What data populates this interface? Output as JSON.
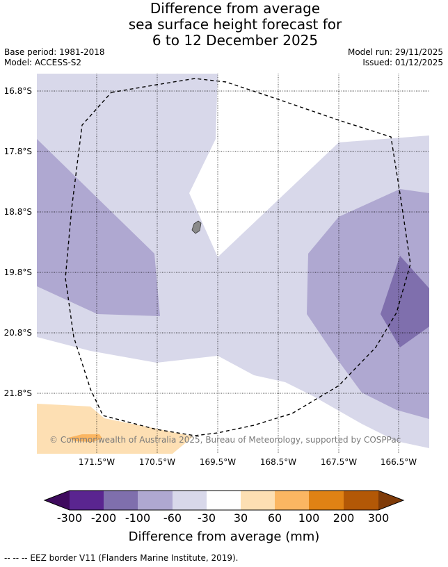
{
  "title": {
    "line1": "Difference from average",
    "line2": "sea surface height forecast for",
    "line3": "6 to 12 December 2025"
  },
  "meta": {
    "base_period": "Base period: 1981-2018",
    "model": "Model: ACCESS-S2",
    "model_run": "Model run: 29/11/2025",
    "issued": "Issued: 01/12/2025"
  },
  "map": {
    "latitude_labels": [
      "16.8°S",
      "17.8°S",
      "18.8°S",
      "19.8°S",
      "20.8°S",
      "21.8°S"
    ],
    "longitude_labels": [
      "171.5°W",
      "170.5°W",
      "169.5°W",
      "168.5°W",
      "167.5°W",
      "166.5°W"
    ],
    "credit": "© Commonwealth of Australia 2025, Bureau of Meteorology, supported by COSPPac"
  },
  "colorbar": {
    "title": "Difference from average (mm)",
    "tick_labels": [
      "-300",
      "-200",
      "-100",
      "-60",
      "-30",
      "30",
      "60",
      "100",
      "200",
      "300"
    ],
    "colors": [
      "#3f0b5e",
      "#5a2590",
      "#7f6fad",
      "#afa8d1",
      "#d8d8ea",
      "#ffffff",
      "#fddfb3",
      "#fbb662",
      "#e08214",
      "#b35806",
      "#7f3b08"
    ]
  },
  "footnote": "--  --  -- EEZ border V11 (Flanders Marine Institute, 2019)."
}
